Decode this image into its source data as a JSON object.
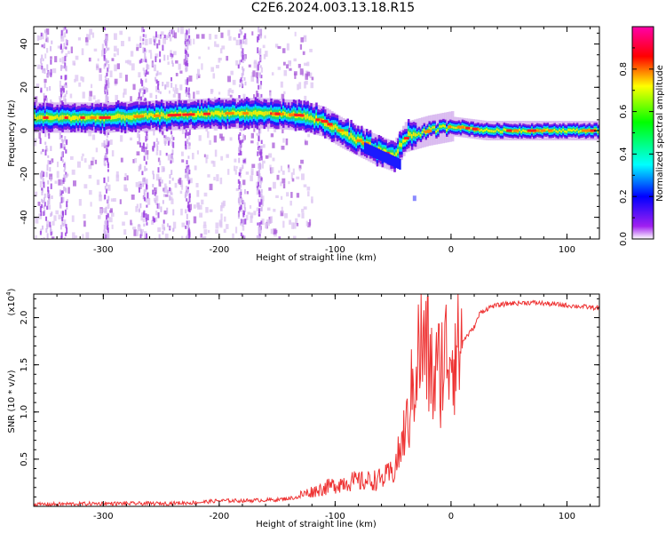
{
  "title": "C2E6.2024.003.13.18.R15",
  "chart_data": [
    {
      "type": "heatmap",
      "name": "spectrogram",
      "xlabel": "Height of straight line (km)",
      "ylabel": "Frequency (Hz)",
      "xlim": [
        -360,
        128
      ],
      "ylim": [
        -50,
        48
      ],
      "xticks": [
        -300,
        -200,
        -100,
        0,
        100
      ],
      "xtick_labels": [
        "-300",
        "-200",
        "-100",
        "0",
        "100"
      ],
      "yticks": [
        -40,
        -20,
        0,
        20,
        40
      ],
      "ytick_labels": [
        "-40",
        "-20",
        "0",
        "20",
        "40"
      ],
      "ridge": [
        {
          "x": -360,
          "y": 6
        },
        {
          "x": -300,
          "y": 6
        },
        {
          "x": -250,
          "y": 7
        },
        {
          "x": -200,
          "y": 8
        },
        {
          "x": -160,
          "y": 8
        },
        {
          "x": -130,
          "y": 7
        },
        {
          "x": -110,
          "y": 4
        },
        {
          "x": -95,
          "y": -1
        },
        {
          "x": -80,
          "y": -5
        },
        {
          "x": -65,
          "y": -9
        },
        {
          "x": -50,
          "y": -12
        },
        {
          "x": -40,
          "y": -3
        },
        {
          "x": -20,
          "y": 0
        },
        {
          "x": 0,
          "y": 2
        },
        {
          "x": 30,
          "y": 0
        },
        {
          "x": 80,
          "y": 0
        },
        {
          "x": 128,
          "y": 0
        }
      ],
      "colorbar": {
        "label": "Normalized spectral amplitude",
        "ticks": [
          0.0,
          0.2,
          0.4,
          0.6,
          0.8
        ],
        "tick_labels": [
          "0.0",
          "0.2",
          "0.4",
          "0.6",
          "0.8"
        ],
        "range": [
          0,
          1
        ],
        "colors": [
          "#ffffff",
          "#8a2be2",
          "#0000ff",
          "#00ffff",
          "#00ff00",
          "#ffff00",
          "#ff0000",
          "#ff00ff"
        ]
      },
      "grid": false
    },
    {
      "type": "line",
      "name": "snr",
      "xlabel": "Height of straight line (km)",
      "ylabel": "SNR (10 * v/v)",
      "scale_label": "(x10",
      "scale_exp": "4",
      "scale_close": ")",
      "xlim": [
        -360,
        128
      ],
      "ylim": [
        0,
        2.25
      ],
      "xticks": [
        -300,
        -200,
        -100,
        0,
        100
      ],
      "xtick_labels": [
        "-300",
        "-200",
        "-100",
        "0",
        "100"
      ],
      "yticks": [
        0.5,
        1.0,
        1.5,
        2.0
      ],
      "ytick_labels": [
        "0.5",
        "1.0",
        "1.5",
        "2.0"
      ],
      "color": "#ee3333",
      "grid": false,
      "series": [
        {
          "x": [
            -360,
            -300,
            -250,
            -220,
            -200,
            -180,
            -150,
            -130,
            -110,
            -90,
            -75,
            -60,
            -50,
            -42,
            -36,
            -30,
            -25,
            -20,
            -15,
            -10,
            -5,
            0,
            10,
            20,
            25,
            35,
            50,
            70,
            90,
            110,
            128
          ],
          "y": [
            0.02,
            0.03,
            0.03,
            0.04,
            0.06,
            0.06,
            0.07,
            0.1,
            0.16,
            0.22,
            0.22,
            0.24,
            0.3,
            0.55,
            1.0,
            1.55,
            1.7,
            1.6,
            1.3,
            1.45,
            1.6,
            1.7,
            1.75,
            1.9,
            2.05,
            2.12,
            2.15,
            2.16,
            2.14,
            2.12,
            2.1
          ]
        }
      ]
    }
  ]
}
